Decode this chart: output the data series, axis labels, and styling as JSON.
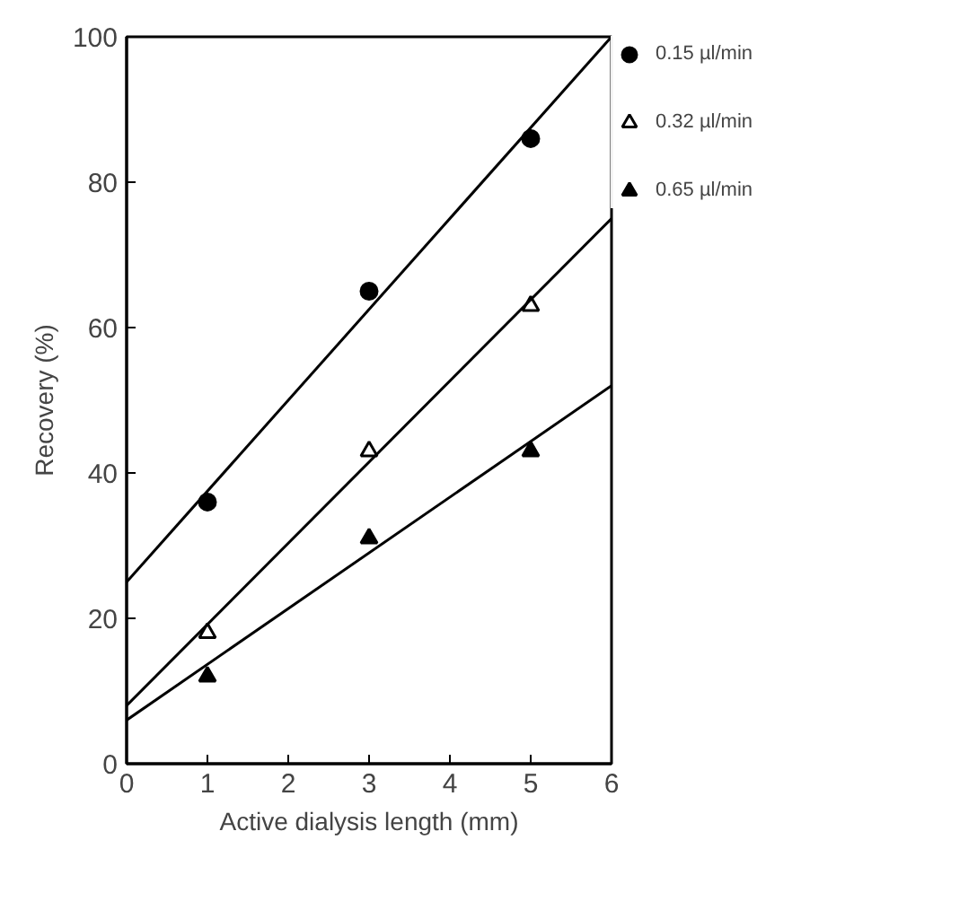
{
  "chart_data": {
    "type": "scatter",
    "xlabel": "Active dialysis length (mm)",
    "ylabel": "Recovery (%)",
    "xlim": [
      0,
      6
    ],
    "ylim": [
      0,
      100
    ],
    "xticks": [
      0,
      1,
      2,
      3,
      4,
      5,
      6
    ],
    "yticks": [
      0,
      20,
      40,
      60,
      80,
      100
    ],
    "grid": false,
    "legend": "right",
    "series": [
      {
        "name": "0.15 µl/min",
        "color": "#000000",
        "marker": "circle",
        "x": [
          1,
          3,
          5
        ],
        "values": [
          36,
          65,
          86
        ]
      },
      {
        "name": "0.32 µl/min",
        "color": "#000000",
        "marker": "triangle",
        "x": [
          1,
          3,
          5
        ],
        "values": [
          18,
          43,
          63
        ]
      },
      {
        "name": "0.65 µl/min",
        "color": "#000000",
        "marker": "triangle",
        "x": [
          1,
          3,
          5
        ],
        "values": [
          12,
          31,
          43
        ]
      },
      {
        "type": "line",
        "color": "#000000",
        "x": [
          0,
          6
        ],
        "values": [
          25,
          100
        ]
      },
      {
        "type": "line",
        "color": "#000000",
        "x": [
          0,
          6
        ],
        "values": [
          8,
          75
        ]
      },
      {
        "type": "line",
        "color": "#000000",
        "x": [
          0,
          6
        ],
        "values": [
          6,
          52
        ]
      }
    ]
  }
}
